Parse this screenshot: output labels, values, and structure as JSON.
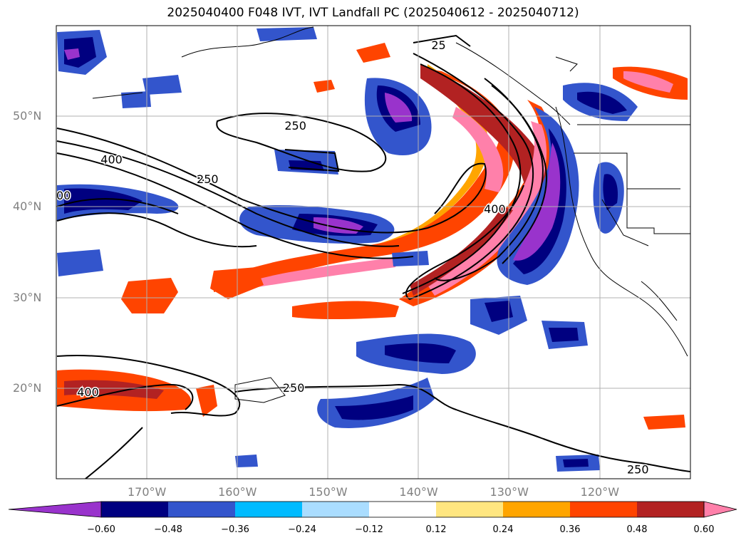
{
  "title": "2025040400 F048 IVT, IVT Landfall PC (2025040612 - 2025040712)",
  "lat_labels": [
    {
      "text": "50°N",
      "lat": 50
    },
    {
      "text": "40°N",
      "lat": 40
    },
    {
      "text": "30°N",
      "lat": 30
    },
    {
      "text": "20°N",
      "lat": 20
    }
  ],
  "lon_labels": [
    {
      "text": "170°W",
      "lon": -170
    },
    {
      "text": "160°W",
      "lon": -160
    },
    {
      "text": "150°W",
      "lon": -150
    },
    {
      "text": "140°W",
      "lon": -140
    },
    {
      "text": "130°W",
      "lon": -130
    },
    {
      "text": "120°W",
      "lon": -120
    }
  ],
  "map_extent": {
    "lon_min": -180,
    "lon_max": -110,
    "lat_min": 10,
    "lat_max": 60
  },
  "contour_labels": [
    {
      "text": "250",
      "lon": -153.8,
      "lat": 20.0
    },
    {
      "text": "400",
      "lon": -176.5,
      "lat": 19.5
    },
    {
      "text": "250",
      "lon": -163.3,
      "lat": 43.0
    },
    {
      "text": "400",
      "lon": -173.9,
      "lat": 45.2
    },
    {
      "text": "250",
      "lon": -153.6,
      "lat": 48.9
    },
    {
      "text": "400",
      "lon": -131.6,
      "lat": 39.7
    },
    {
      "text": "00",
      "lon": -179.2,
      "lat": 41.2
    },
    {
      "text": "250",
      "lon": -115.8,
      "lat": 11.0
    },
    {
      "text": "25",
      "lon": -137.8,
      "lat": 57.8
    }
  ],
  "colorbar": {
    "ticks": [
      "−0.60",
      "−0.48",
      "−0.36",
      "−0.24",
      "−0.12",
      "0.12",
      "0.24",
      "0.36",
      "0.48",
      "0.60"
    ],
    "colors": [
      "#9933cc",
      "#000080",
      "#3355cc",
      "#00bbff",
      "#aaddff",
      "#ffffff",
      "#ffe680",
      "#ffa500",
      "#ff4400",
      "#b22222",
      "#ff80aa"
    ]
  },
  "palette": {
    "purple": "#9933cc",
    "navy": "#000080",
    "blue": "#3355cc",
    "cyan": "#00bbff",
    "lightblue": "#aaddff",
    "yellow": "#ffe680",
    "orange": "#ffa500",
    "redorange": "#ff4400",
    "darkred": "#b22222",
    "pink": "#ff80aa"
  }
}
